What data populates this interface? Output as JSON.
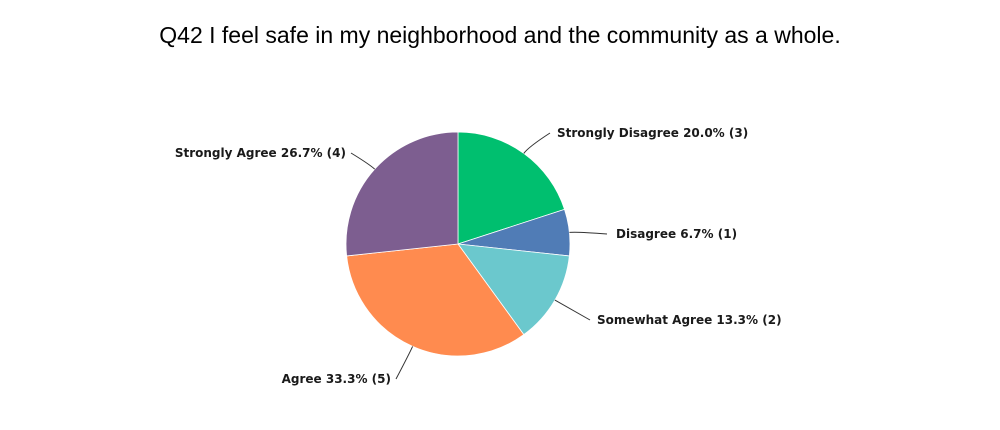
{
  "chart_data": {
    "type": "pie",
    "title": "Q42 I feel safe in my neighborhood and the community as a whole.",
    "slices": [
      {
        "label": "Strongly Disagree 20.0% (3)",
        "category": "Strongly Disagree",
        "percent": 20.0,
        "count": 3,
        "color": "#00BF6F"
      },
      {
        "label": "Disagree 6.7% (1)",
        "category": "Disagree",
        "percent": 6.7,
        "count": 1,
        "color": "#507CB6"
      },
      {
        "label": "Somewhat Agree 13.3% (2)",
        "category": "Somewhat Agree",
        "percent": 13.3,
        "count": 2,
        "color": "#6BC8CD"
      },
      {
        "label": "Agree 33.3% (5)",
        "category": "Agree",
        "percent": 33.3,
        "count": 5,
        "color": "#FF8B4F"
      },
      {
        "label": "Strongly Agree 26.7% (4)",
        "category": "Strongly Agree",
        "percent": 26.7,
        "count": 4,
        "color": "#7D5E90"
      }
    ],
    "start_angle": "12 o'clock, clockwise"
  }
}
